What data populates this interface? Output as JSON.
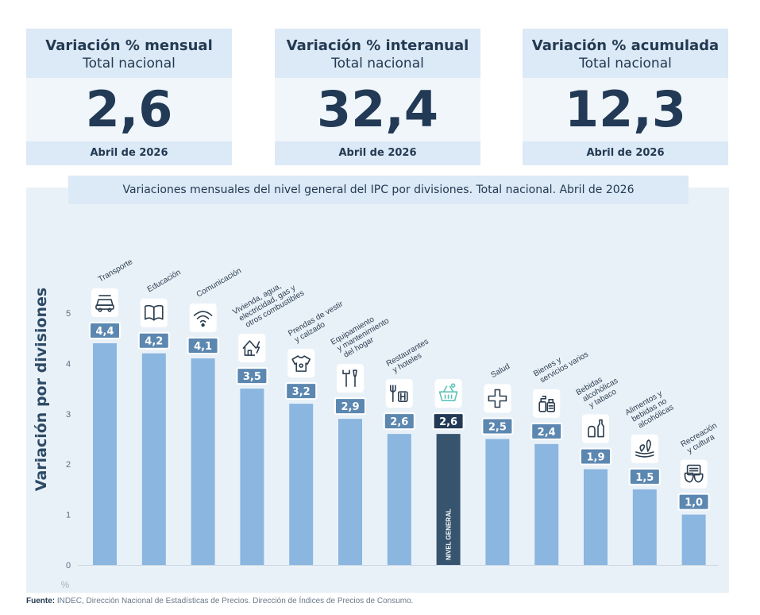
{
  "cards": [
    {
      "title": "Variación % mensual",
      "subtitle": "Total nacional",
      "value": "2,6",
      "period": "Abril de 2026"
    },
    {
      "title": "Variación % interanual",
      "subtitle": "Total nacional",
      "value": "32,4",
      "period": "Abril de 2026"
    },
    {
      "title": "Variación % acumulada",
      "subtitle": "Total nacional",
      "value": "12,3",
      "period": "Abril de 2026"
    }
  ],
  "chart_data": {
    "type": "bar",
    "title": "Variaciones mensuales del nivel general del IPC por divisiones. Total nacional. Abril de 2026",
    "ylabel": "Variación por divisiones",
    "yunit": "%",
    "ylim": [
      0,
      5
    ],
    "yticks": [
      0,
      1,
      2,
      3,
      4,
      5
    ],
    "grid": false,
    "categories": [
      "Transporte",
      "Educación",
      "Comunicación",
      "Vivienda, agua, electricidad, gas y otros combustibles",
      "Prendas de vestir y calzado",
      "Equipamiento y mantenimiento del hogar",
      "Restaurantes y hoteles",
      "Nivel general",
      "Salud",
      "Bienes y servicios varios",
      "Bebidas alcohólicas y tabaco",
      "Alimentos y bebidas no alcohólicas",
      "Recreación y cultura"
    ],
    "category_label_lines": [
      [
        "Transporte"
      ],
      [
        "Educación"
      ],
      [
        "Comunicación"
      ],
      [
        "Vivienda, agua,",
        "electricidad, gas y",
        "otros combustibles"
      ],
      [
        "Prendas de vestir",
        "y calzado"
      ],
      [
        "Equipamiento",
        "y mantenimiento",
        "del hogar"
      ],
      [
        "Restaurantes",
        "y hoteles"
      ],
      [
        "NIVEL GENERAL"
      ],
      [
        "Salud"
      ],
      [
        "Bienes y",
        "servicios varios"
      ],
      [
        "Bebidas",
        "alcohólicas",
        "y tabaco"
      ],
      [
        "Alimentos y",
        "bebidas no",
        "alcohólicas"
      ],
      [
        "Recreación",
        "y cultura"
      ]
    ],
    "values": [
      4.4,
      4.2,
      4.1,
      3.5,
      3.2,
      2.9,
      2.6,
      2.6,
      2.5,
      2.4,
      1.9,
      1.5,
      1.0
    ],
    "value_labels": [
      "4,4",
      "4,2",
      "4,1",
      "3,5",
      "3,2",
      "2,9",
      "2,6",
      "2,6",
      "2,5",
      "2,4",
      "1,9",
      "1,5",
      "1,0"
    ],
    "icons": [
      "car-icon",
      "book-icon",
      "wifi-icon",
      "house-icon",
      "tshirt-icon",
      "tools-icon",
      "cutlery-icon",
      "basket-icon",
      "cross-icon",
      "bottles-icon",
      "wine-icon",
      "food-icon",
      "theater-icon"
    ],
    "highlight_index": 7,
    "colors": {
      "bar": "#8ab6e0",
      "highlight": "#37546f",
      "label_bg": "#5b87b0",
      "label_highlight_bg": "#223a55",
      "icon_highlight": "#5ec4b6"
    }
  },
  "source": {
    "label": "Fuente:",
    "text": "INDEC, Dirección Nacional de Estadísticas de Precios. Dirección de Índices de Precios de Consumo."
  }
}
